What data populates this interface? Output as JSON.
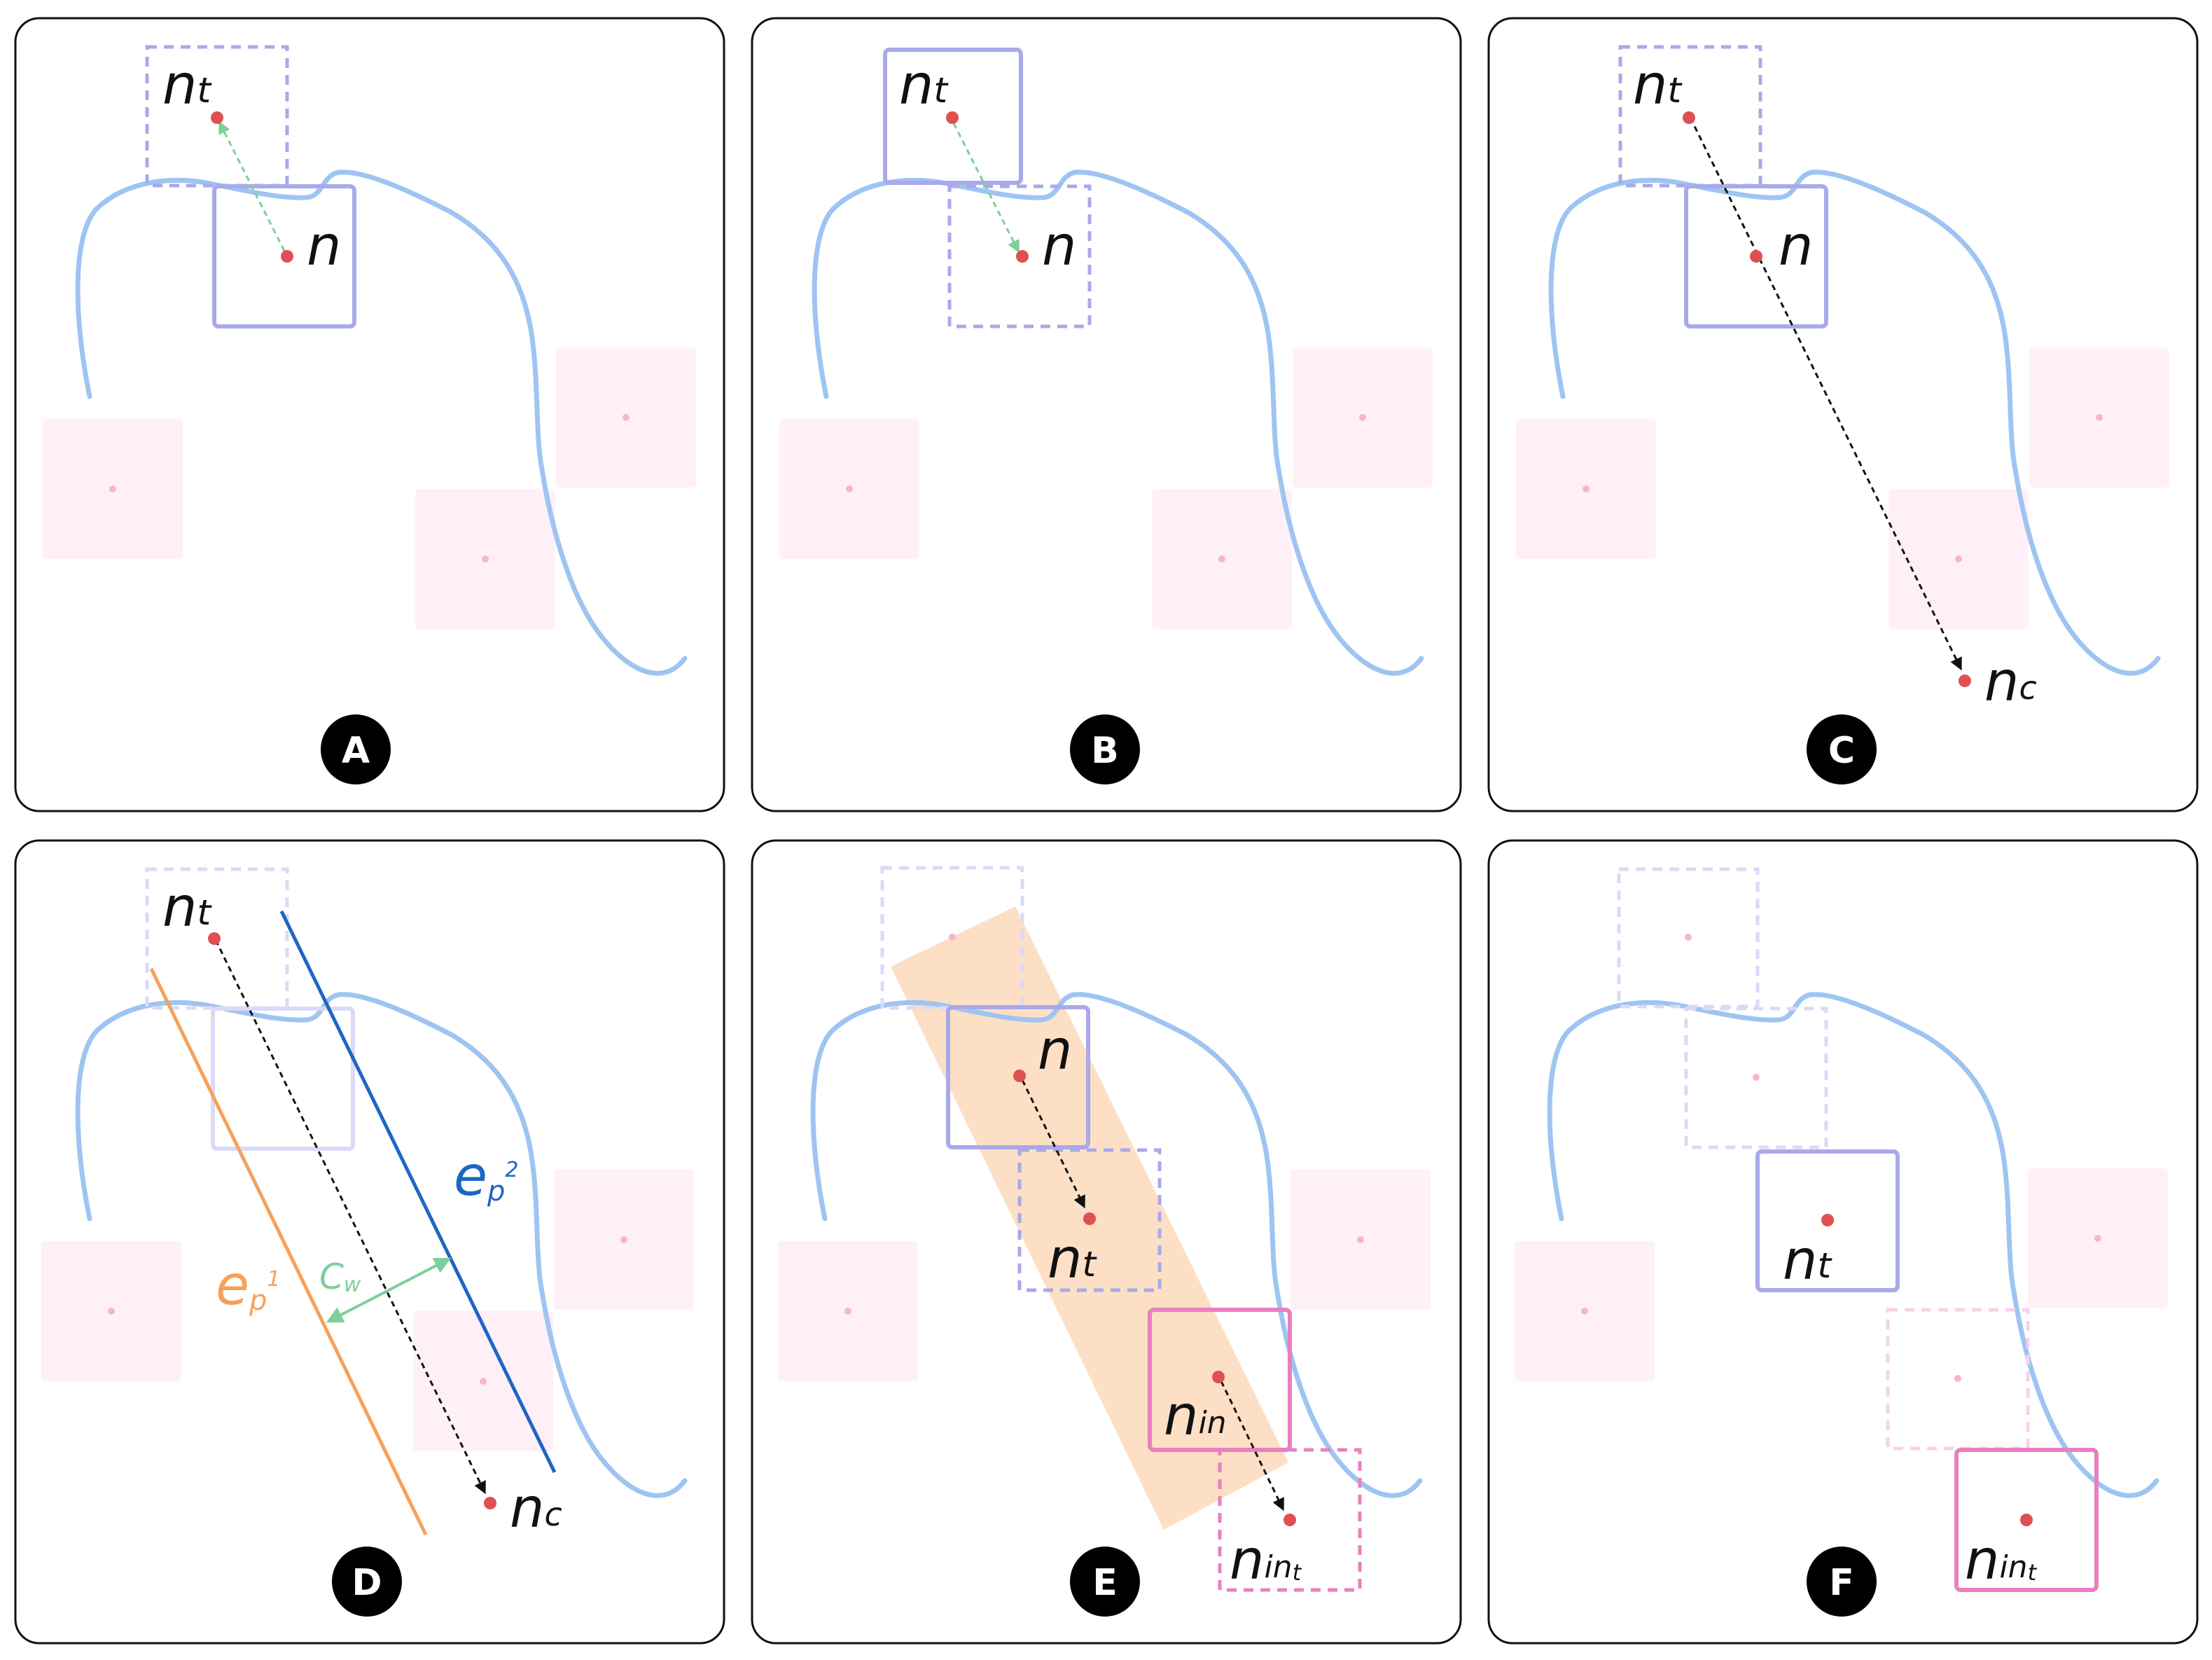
{
  "colors": {
    "curve": "#9ec4f2",
    "box": "#a9a9ea",
    "box_faded": "#dadaf7",
    "pink_square": "#fff0f7",
    "pink_dot": "#f7b6c8",
    "dot": "#e05050",
    "green": "#7dcf9b",
    "black": "#111111",
    "orange": "#f6a15b",
    "blue": "#1e66c4",
    "corridor": "#fcdcbf",
    "magenta": "#ea7fc0",
    "magenta_faded": "#f7d3e8"
  },
  "panels": [
    {
      "letter": "A",
      "labels": {
        "nt_base": "n",
        "nt_sub": "t",
        "n": "n"
      }
    },
    {
      "letter": "B",
      "labels": {
        "nt_base": "n",
        "nt_sub": "t",
        "n": "n"
      }
    },
    {
      "letter": "C",
      "labels": {
        "nt_base": "n",
        "nt_sub": "t",
        "n": "n",
        "nc_base": "n",
        "nc_sub": "c"
      }
    },
    {
      "letter": "D",
      "labels": {
        "nt_base": "n",
        "nt_sub": "t",
        "nc_base": "n",
        "nc_sub": "c",
        "ep2_base": "e",
        "ep2_sub": "p",
        "ep2_sup": "2",
        "ep1_base": "e",
        "ep1_sub": "p",
        "ep1_sup": "1",
        "cw_base": "C",
        "cw_sub": "w"
      }
    },
    {
      "letter": "E",
      "labels": {
        "n": "n",
        "nt_base": "n",
        "nt_sub": "t",
        "nin_base": "n",
        "nin_sub": "in",
        "nint_base": "n",
        "nint_sub": "in",
        "nint_subsub": "t"
      }
    },
    {
      "letter": "F",
      "labels": {
        "nt_base": "n",
        "nt_sub": "t",
        "nint_base": "n",
        "nint_sub": "in",
        "nint_subsub": "t"
      }
    }
  ]
}
